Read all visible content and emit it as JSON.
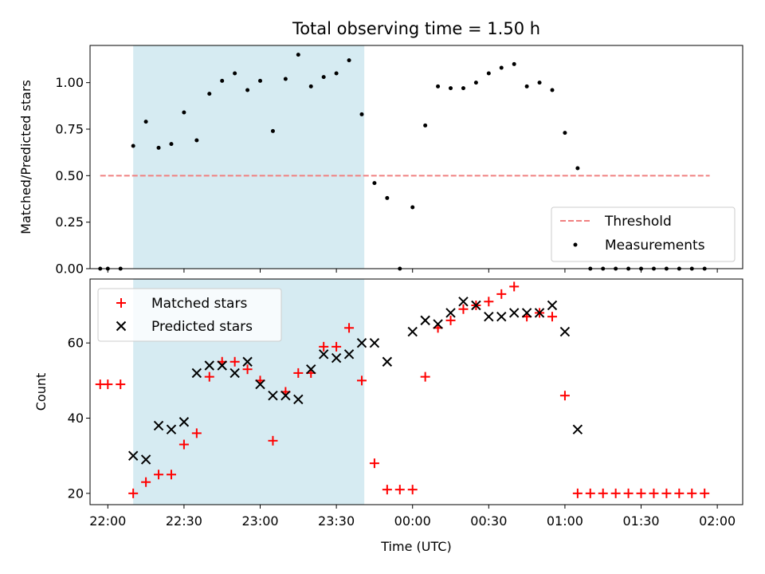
{
  "chart_data": [
    {
      "type": "scatter",
      "title": "Total observing time = 1.50 h",
      "xlabel": "",
      "ylabel": "Matched/Predicted stars",
      "ylim": [
        0,
        1.2
      ],
      "yticks": [
        "0.00",
        "0.25",
        "0.50",
        "0.75",
        "1.00"
      ],
      "xlim": [
        "21:53",
        "02:10"
      ],
      "shaded_span": [
        "22:10",
        "23:41"
      ],
      "threshold": {
        "name": "Threshold",
        "y": 0.5,
        "x_start": "21:57",
        "x_end": "01:57",
        "color": "#f08080"
      },
      "legend": {
        "position": "bottom-right",
        "entries": [
          "Threshold",
          "Measurements"
        ]
      },
      "series": [
        {
          "name": "Measurements",
          "color": "#000000",
          "x": [
            "21:57",
            "22:00",
            "22:05",
            "22:10",
            "22:15",
            "22:20",
            "22:25",
            "22:30",
            "22:35",
            "22:40",
            "22:45",
            "22:50",
            "22:55",
            "23:00",
            "23:05",
            "23:10",
            "23:15",
            "23:20",
            "23:25",
            "23:30",
            "23:35",
            "23:40",
            "23:45",
            "23:50",
            "23:55",
            "00:00",
            "00:05",
            "00:10",
            "00:15",
            "00:20",
            "00:25",
            "00:30",
            "00:35",
            "00:40",
            "00:45",
            "00:50",
            "00:55",
            "01:00",
            "01:05",
            "01:10",
            "01:15",
            "01:20",
            "01:25",
            "01:30",
            "01:35",
            "01:40",
            "01:45",
            "01:50",
            "01:55"
          ],
          "y": [
            0,
            0,
            0,
            0.66,
            0.79,
            0.65,
            0.67,
            0.84,
            0.69,
            0.94,
            1.01,
            1.05,
            0.96,
            1.01,
            0.74,
            1.02,
            1.15,
            0.98,
            1.03,
            1.05,
            1.12,
            0.83,
            0.46,
            0.38,
            0,
            0.33,
            0.77,
            0.98,
            0.97,
            0.97,
            1.0,
            1.05,
            1.08,
            1.1,
            0.98,
            1.0,
            0.96,
            0.73,
            0.54,
            0,
            0,
            0,
            0,
            0,
            0,
            0,
            0,
            0,
            0
          ]
        }
      ]
    },
    {
      "type": "scatter",
      "title": "",
      "xlabel": "Time (UTC)",
      "ylabel": "Count",
      "ylim": [
        17,
        77
      ],
      "yticks": [
        "20",
        "40",
        "60"
      ],
      "xlim": [
        "21:53",
        "02:10"
      ],
      "xticks": [
        "22:00",
        "22:30",
        "23:00",
        "23:30",
        "00:00",
        "00:30",
        "01:00",
        "01:30",
        "02:00"
      ],
      "shaded_span": [
        "22:10",
        "23:41"
      ],
      "legend": {
        "position": "top-left",
        "entries": [
          "Matched stars",
          "Predicted stars"
        ]
      },
      "series": [
        {
          "name": "Matched stars",
          "marker": "plus",
          "color": "#ff0000",
          "x": [
            "21:57",
            "22:00",
            "22:05",
            "22:10",
            "22:15",
            "22:20",
            "22:25",
            "22:30",
            "22:35",
            "22:40",
            "22:45",
            "22:50",
            "22:55",
            "23:00",
            "23:05",
            "23:10",
            "23:15",
            "23:20",
            "23:25",
            "23:30",
            "23:35",
            "23:40",
            "23:45",
            "23:50",
            "23:55",
            "00:00",
            "00:05",
            "00:10",
            "00:15",
            "00:20",
            "00:25",
            "00:30",
            "00:35",
            "00:40",
            "00:45",
            "00:50",
            "00:55",
            "01:00",
            "01:05",
            "01:10",
            "01:15",
            "01:20",
            "01:25",
            "01:30",
            "01:35",
            "01:40",
            "01:45",
            "01:50",
            "01:55"
          ],
          "y": [
            49,
            49,
            49,
            20,
            23,
            25,
            25,
            33,
            36,
            51,
            55,
            55,
            53,
            50,
            34,
            47,
            52,
            52,
            59,
            59,
            64,
            50,
            28,
            21,
            21,
            21,
            51,
            64,
            66,
            69,
            70,
            71,
            73,
            75,
            67,
            68,
            67,
            46,
            20,
            20,
            20,
            20,
            20,
            20,
            20,
            20,
            20,
            20,
            20
          ]
        },
        {
          "name": "Predicted stars",
          "marker": "x",
          "color": "#000000",
          "x": [
            "22:10",
            "22:15",
            "22:20",
            "22:25",
            "22:30",
            "22:35",
            "22:40",
            "22:45",
            "22:50",
            "22:55",
            "23:00",
            "23:05",
            "23:10",
            "23:15",
            "23:20",
            "23:25",
            "23:30",
            "23:35",
            "23:40",
            "23:45",
            "23:50",
            "00:00",
            "00:05",
            "00:10",
            "00:15",
            "00:20",
            "00:25",
            "00:30",
            "00:35",
            "00:40",
            "00:45",
            "00:50",
            "00:55",
            "01:00",
            "01:05"
          ],
          "y": [
            30,
            29,
            38,
            37,
            39,
            52,
            54,
            54,
            52,
            55,
            49,
            46,
            46,
            45,
            53,
            57,
            56,
            57,
            60,
            60,
            55,
            63,
            66,
            65,
            68,
            71,
            70,
            67,
            67,
            68,
            68,
            68,
            70,
            63,
            37
          ]
        }
      ]
    }
  ]
}
